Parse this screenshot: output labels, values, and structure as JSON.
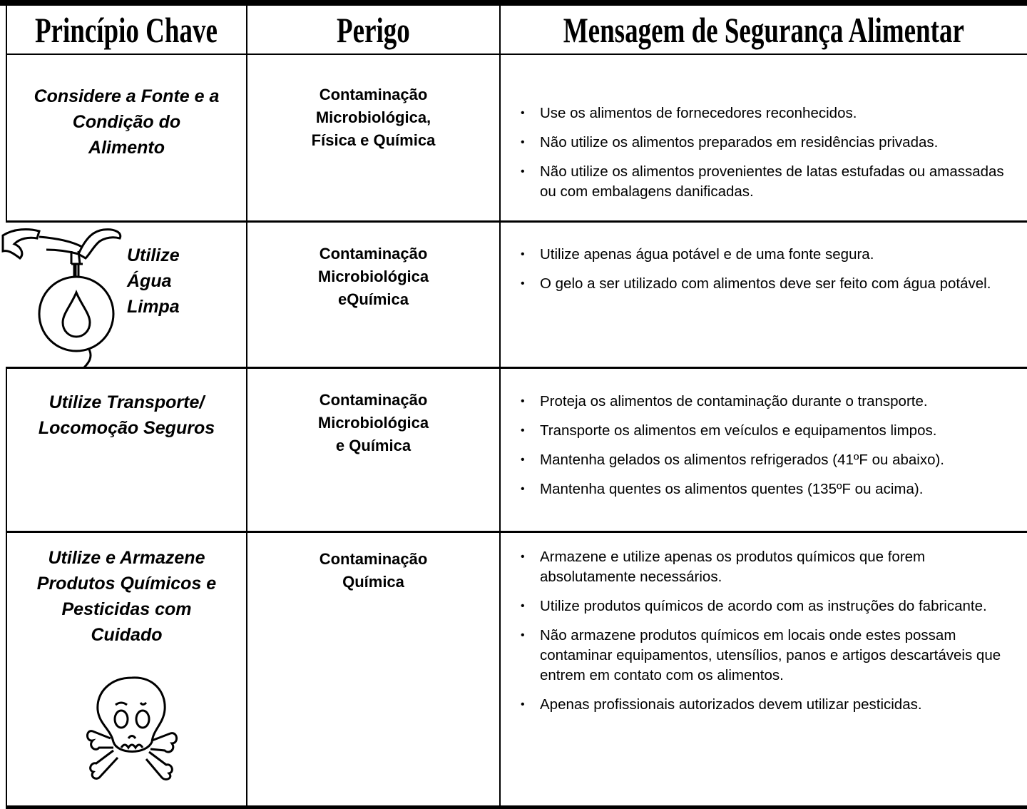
{
  "header": {
    "columns": [
      "Princípio Chave",
      "Perigo",
      "Mensagem de Segurança Alimentar"
    ]
  },
  "rows": [
    {
      "principle": [
        "Considere a Fonte e a",
        "Condição do",
        "Alimento"
      ],
      "hazard": [
        "Contaminação",
        "Microbiológica,",
        "Física e Química"
      ],
      "messages": [
        "Use os alimentos de fornecedores reconhecidos.",
        "Não utilize os alimentos preparados em residências privadas.",
        "Não utilize os alimentos provenientes de latas estufadas ou amassadas ou com embalagens danificadas."
      ]
    },
    {
      "principle": [
        "Utilize",
        "Água",
        "Limpa"
      ],
      "hazard": [
        "Contaminação",
        "Microbiológica",
        "eQuímica"
      ],
      "messages": [
        "Utilize apenas água potável e de uma fonte segura.",
        "O gelo a ser utilizado com alimentos deve ser feito com água potável."
      ]
    },
    {
      "principle": [
        "Utilize Transporte/",
        "Locomoção Seguros"
      ],
      "hazard": [
        "Contaminação",
        "Microbiológica",
        "e Química"
      ],
      "messages": [
        "Proteja os alimentos de contaminação durante o transporte.",
        "Transporte os alimentos em veículos e equipamentos limpos.",
        "Mantenha gelados os alimentos refrigerados  (41ºF ou abaixo).",
        "Mantenha quentes os alimentos quentes (135ºF ou acima)."
      ]
    },
    {
      "principle": [
        "Utilize e Armazene",
        "Produtos Químicos e",
        "Pesticidas com",
        "Cuidado"
      ],
      "hazard": [
        "Contaminação",
        "Química"
      ],
      "messages": [
        "Armazene e utilize apenas os produtos químicos que forem absolutamente necessários.",
        "Utilize produtos químicos de acordo com as instruções do fabricante.",
        "Não armazene produtos químicos em locais onde estes possam contaminar equipamentos, utensílios, panos e artigos descartáveis que entrem em contato com os alimentos.",
        "Apenas profissionais autorizados devem utilizar pesticidas."
      ]
    }
  ]
}
